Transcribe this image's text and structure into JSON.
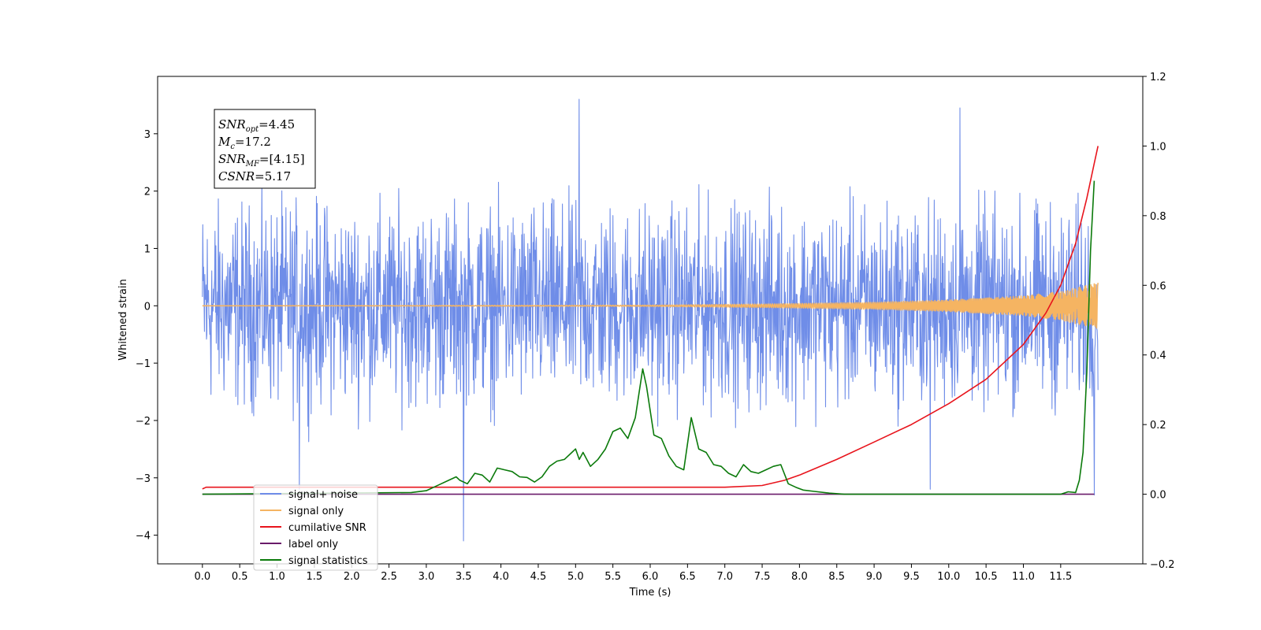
{
  "chart_data": {
    "type": "line",
    "title": "",
    "xlabel": "Time (s)",
    "ylabel": "Whitened strain",
    "xlim": [
      -0.6,
      12.6
    ],
    "ylim": [
      -4.5,
      4.0
    ],
    "y2lim": [
      -0.2,
      1.2
    ],
    "x_ticks": [
      0.0,
      0.5,
      1.0,
      1.5,
      2.0,
      2.5,
      3.0,
      3.5,
      4.0,
      4.5,
      5.0,
      5.5,
      6.0,
      6.5,
      7.0,
      7.5,
      8.0,
      8.5,
      9.0,
      9.5,
      10.0,
      10.5,
      11.0,
      11.5
    ],
    "x_tick_labels": [
      "0.0",
      "0.5",
      "1.0",
      "1.5",
      "2.0",
      "2.5",
      "3.0",
      "3.5",
      "4.0",
      "4.5",
      "5.0",
      "5.5",
      "6.0",
      "6.5",
      "7.0",
      "7.5",
      "8.0",
      "8.5",
      "9.0",
      "9.5",
      "10.0",
      "10.5",
      "11.0",
      "11.5"
    ],
    "y_ticks": [
      -4,
      -3,
      -2,
      -1,
      0,
      1,
      2,
      3
    ],
    "y_tick_labels": [
      "−4",
      "−3",
      "−2",
      "−1",
      "0",
      "1",
      "2",
      "3"
    ],
    "y2_ticks": [
      -0.2,
      0.0,
      0.2,
      0.4,
      0.6,
      0.8,
      1.0,
      1.2
    ],
    "y2_tick_labels": [
      "−0.2",
      "0.0",
      "0.2",
      "0.4",
      "0.6",
      "0.8",
      "1.0",
      "1.2"
    ],
    "grid": false,
    "legend_position": "lower-left",
    "annotation": {
      "lines": [
        {
          "main": "SNR",
          "sub": "opt",
          "rest": "=4.45"
        },
        {
          "main": "M",
          "sub": "c",
          "rest": "=17.2"
        },
        {
          "main": "SNR",
          "sub": "MF",
          "rest": "=[4.15]"
        },
        {
          "main": "CSNR",
          "sub": "",
          "rest": "=5.17"
        }
      ]
    },
    "series": [
      {
        "name": "signal+ noise",
        "color": "#6f8de8",
        "axis": "left",
        "kind": "noise",
        "x_range": [
          0.0,
          12.0
        ],
        "amplitude_envelope": {
          "x": [
            0,
            12
          ],
          "y": [
            2.5,
            2.5
          ]
        },
        "spikes": [
          {
            "x": 5.05,
            "y": 3.6
          },
          {
            "x": 10.15,
            "y": 3.45
          },
          {
            "x": 3.5,
            "y": -4.1
          },
          {
            "x": 1.3,
            "y": -3.2
          },
          {
            "x": 9.75,
            "y": -3.2
          },
          {
            "x": 11.95,
            "y": -3.3
          }
        ]
      },
      {
        "name": "signal only",
        "color": "#f5b462",
        "axis": "left",
        "kind": "chirp",
        "x_range": [
          0.0,
          12.0
        ],
        "amplitude_envelope": {
          "x": [
            0,
            6,
            7.5,
            9,
            10,
            11,
            11.5,
            12
          ],
          "y": [
            0.0,
            0.01,
            0.03,
            0.06,
            0.1,
            0.17,
            0.25,
            0.4
          ]
        }
      },
      {
        "name": "cumilative SNR",
        "color": "#e8141c",
        "axis": "right",
        "x": [
          0.0,
          0.05,
          7.0,
          7.5,
          7.8,
          8.0,
          8.5,
          9.0,
          9.5,
          10.0,
          10.5,
          11.0,
          11.3,
          11.5,
          11.7,
          11.85,
          11.95,
          12.0
        ],
        "y": [
          0.015,
          0.02,
          0.02,
          0.025,
          0.04,
          0.055,
          0.1,
          0.15,
          0.2,
          0.26,
          0.33,
          0.43,
          0.52,
          0.6,
          0.72,
          0.85,
          0.95,
          1.0
        ]
      },
      {
        "name": "label only",
        "color": "#6a1b6a",
        "axis": "right",
        "x": [
          0.0,
          11.95
        ],
        "y": [
          0.0,
          0.0
        ]
      },
      {
        "name": "signal statistics",
        "color": "#0b7a0b",
        "axis": "right",
        "x": [
          0.0,
          2.8,
          3.0,
          3.1,
          3.2,
          3.3,
          3.4,
          3.45,
          3.55,
          3.65,
          3.75,
          3.85,
          3.95,
          4.05,
          4.15,
          4.25,
          4.35,
          4.45,
          4.55,
          4.65,
          4.75,
          4.85,
          4.95,
          5.0,
          5.05,
          5.1,
          5.2,
          5.3,
          5.4,
          5.5,
          5.6,
          5.7,
          5.8,
          5.9,
          5.95,
          6.05,
          6.15,
          6.25,
          6.35,
          6.45,
          6.55,
          6.65,
          6.75,
          6.85,
          6.95,
          7.05,
          7.15,
          7.25,
          7.35,
          7.45,
          7.55,
          7.65,
          7.75,
          7.85,
          7.95,
          8.05,
          8.2,
          8.4,
          8.6,
          11.5,
          11.6,
          11.7,
          11.75,
          11.8,
          11.85,
          11.9,
          11.95
        ],
        "y": [
          0.0,
          0.005,
          0.01,
          0.02,
          0.03,
          0.04,
          0.05,
          0.04,
          0.03,
          0.06,
          0.055,
          0.035,
          0.075,
          0.07,
          0.065,
          0.05,
          0.048,
          0.035,
          0.05,
          0.08,
          0.095,
          0.1,
          0.12,
          0.13,
          0.1,
          0.12,
          0.08,
          0.1,
          0.13,
          0.18,
          0.19,
          0.16,
          0.22,
          0.36,
          0.31,
          0.17,
          0.16,
          0.11,
          0.08,
          0.07,
          0.22,
          0.13,
          0.12,
          0.085,
          0.08,
          0.06,
          0.05,
          0.085,
          0.065,
          0.06,
          0.07,
          0.08,
          0.085,
          0.03,
          0.02,
          0.012,
          0.008,
          0.003,
          0.0,
          0.0,
          0.007,
          0.005,
          0.04,
          0.12,
          0.35,
          0.7,
          0.9
        ]
      }
    ]
  }
}
